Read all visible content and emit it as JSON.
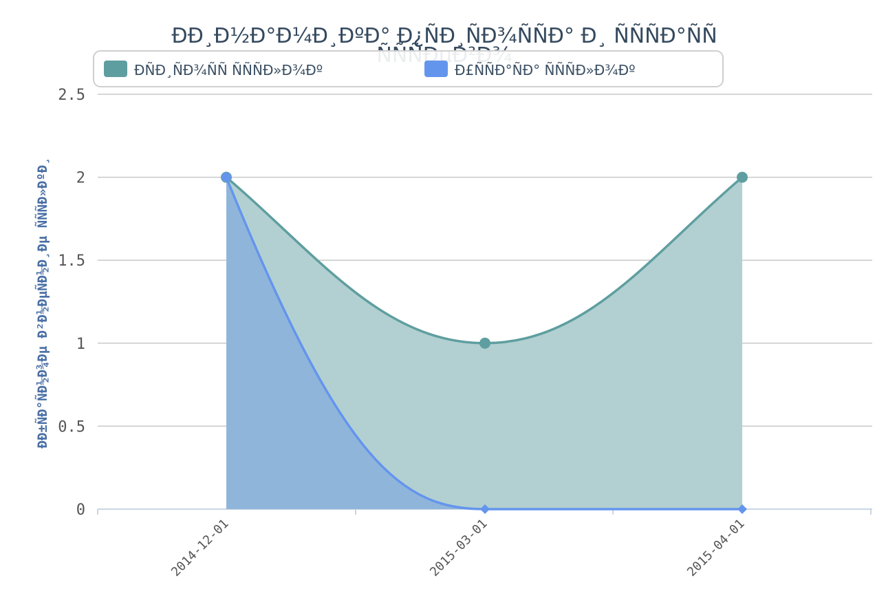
{
  "chart_data": {
    "type": "area",
    "title": "ÐÐ¸Ð½Ð°Ð¼Ð¸ÐºÐ° Ð¿ÑÐ¸ÑÐ¾ÑÑÐ° Ð¸ ÑÑÑÐ°ÑÑ",
    "title_line2": "ÑÑÑÐµÐ²Ð¾",
    "ylabel": "ÐÐ±ÑÐ°ÑÐ½Ð¾Ðµ Ð²Ð½ÐµÑÐ½Ð¸Ðµ ÑÑÑÐ»ÐºÐ¸",
    "xlabel": "",
    "categories": [
      "2014-12-01",
      "2015-03-01",
      "2015-04-01"
    ],
    "ylim": [
      0,
      2.5
    ],
    "yticks": [
      "0",
      "0.5",
      "1",
      "1.5",
      "2",
      "2.5"
    ],
    "grid": true,
    "legend_position": "top",
    "series": [
      {
        "name": "ÐÑÐ¸ÑÐ¾ÑÑ ÑÑÑÐ»Ð¾Ðº",
        "values": [
          2,
          1,
          2
        ],
        "color": "#5f9ea0",
        "fill": "#b2d0d1",
        "marker": "circle"
      },
      {
        "name": "Ð£ÑÑÐ°ÑÐ° ÑÑÑÐ»Ð¾Ðº",
        "values": [
          2,
          0,
          0
        ],
        "color": "#6495ed",
        "fill": "#89b0dd",
        "marker": "diamond"
      }
    ]
  }
}
